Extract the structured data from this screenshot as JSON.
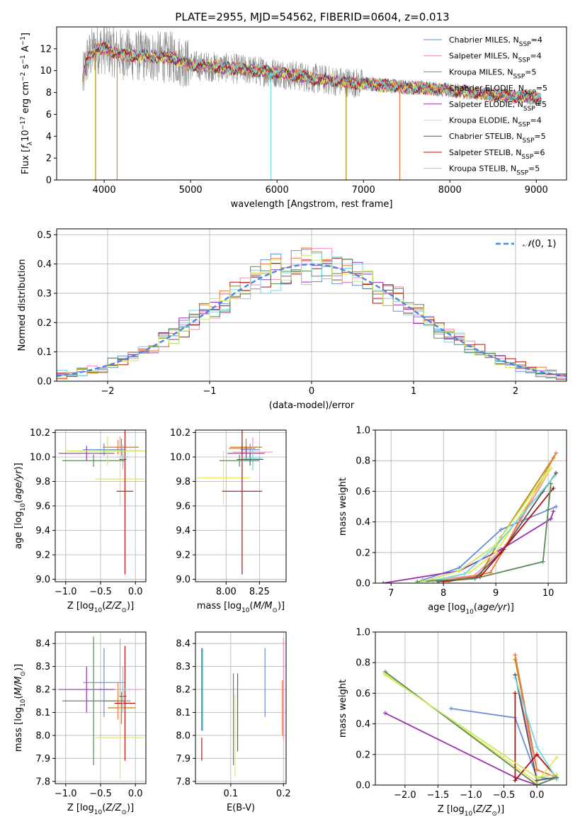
{
  "figure_title": "PLATE=2955, MJD=54562, FIBERID=0604, z=0.013",
  "colors": {
    "Chabrier MILES": "#6a8fd8",
    "Salpeter MILES": "#f08cc0",
    "Kroupa MILES": "#b8860b",
    "Chabrier ELODIE": "#f07a3a",
    "Salpeter ELODIE": "#9b30b0",
    "Kroupa ELODIE": "#e8e850",
    "Chabrier STELIB": "#555555",
    "Salpeter STELIB": "#b01010",
    "Kroupa STELIB": "#70d8e0",
    "extra_green": "#5a8a5a",
    "extra_lime": "#c8e860",
    "gaussian": "#4a86e8"
  },
  "chart_data": [
    {
      "panel": "spectrum",
      "type": "line",
      "xlabel": "wavelength [Angstrom, rest frame]",
      "ylabel": "Flux [f_λ 10^-17 erg cm^-2 s^-1 A^-1]",
      "xlim": [
        3450,
        9350
      ],
      "ylim": [
        0,
        14
      ],
      "xticks": [
        4000,
        5000,
        6000,
        7000,
        8000,
        9000
      ],
      "yticks": [
        0,
        2,
        4,
        6,
        8,
        10,
        12
      ],
      "continuum": [
        [
          3750,
          9.0
        ],
        [
          3800,
          11.0
        ],
        [
          3900,
          12.0
        ],
        [
          4000,
          12.0
        ],
        [
          4200,
          11.5
        ],
        [
          4500,
          11.3
        ],
        [
          4800,
          11.2
        ],
        [
          5000,
          10.5
        ],
        [
          5500,
          10.2
        ],
        [
          6000,
          9.8
        ],
        [
          6500,
          9.2
        ],
        [
          7000,
          8.8
        ],
        [
          7500,
          8.5
        ],
        [
          8000,
          8.2
        ],
        [
          8500,
          7.8
        ],
        [
          9000,
          7.5
        ],
        [
          9060,
          7.4
        ]
      ],
      "series": [
        {
          "name": "Chabrier MILES",
          "legend": "Chabrier MILES, N_SSP=4"
        },
        {
          "name": "Salpeter MILES",
          "legend": "Salpeter MILES, N_SSP=4"
        },
        {
          "name": "Kroupa MILES",
          "legend": "Kroupa MILES, N_SSP=5"
        },
        {
          "name": "Chabrier ELODIE",
          "legend": "Chabrier ELODIE, N_SSP=5"
        },
        {
          "name": "Salpeter ELODIE",
          "legend": "Salpeter ELODIE, N_SSP=5"
        },
        {
          "name": "Kroupa ELODIE",
          "legend": "Kroupa ELODIE, N_SSP=4"
        },
        {
          "name": "Chabrier STELIB",
          "legend": "Chabrier STELIB, N_SSP=5"
        },
        {
          "name": "Salpeter STELIB",
          "legend": "Salpeter STELIB, N_SSP=6"
        },
        {
          "name": "Kroupa STELIB",
          "legend": "Kroupa STELIB, N_SSP=5"
        }
      ]
    },
    {
      "panel": "residuals",
      "type": "line",
      "xlabel": "(data-model)/error",
      "ylabel": "Normed distribution",
      "xlim": [
        -2.5,
        2.5
      ],
      "ylim": [
        0,
        0.52
      ],
      "xticks": [
        -2,
        -1,
        0,
        1,
        2
      ],
      "yticks": [
        0.0,
        0.1,
        0.2,
        0.3,
        0.4,
        0.5
      ],
      "legend": "N(0,1)",
      "grid": true
    },
    {
      "panel": "age_vs_Z",
      "type": "scatter",
      "xlabel": "Z [log10(Z/Z_sun)]",
      "ylabel": "age [log10(age/yr)]",
      "xlim": [
        -1.15,
        0.15
      ],
      "ylim": [
        8.98,
        10.22
      ],
      "xticks": [
        -1.0,
        -0.5,
        0.0
      ],
      "yticks": [
        9.0,
        9.2,
        9.4,
        9.6,
        9.8,
        10.0,
        10.2
      ],
      "grid": true,
      "points": [
        {
          "x": -0.45,
          "y": 10.06,
          "xerr": 0.3,
          "yerr": 0.05,
          "c": "Chabrier MILES"
        },
        {
          "x": -0.22,
          "y": 10.05,
          "xerr": 0.3,
          "yerr": 0.12,
          "c": "Salpeter MILES"
        },
        {
          "x": -0.2,
          "y": 10.08,
          "xerr": 0.25,
          "yerr": 0.07,
          "c": "Kroupa MILES"
        },
        {
          "x": -0.25,
          "y": 10.08,
          "xerr": 0.22,
          "yerr": 0.06,
          "c": "Chabrier ELODIE"
        },
        {
          "x": -0.7,
          "y": 10.03,
          "xerr": 0.4,
          "yerr": 0.06,
          "c": "Salpeter ELODIE"
        },
        {
          "x": -0.22,
          "y": 9.82,
          "xerr": 0.35,
          "yerr": 0.22,
          "c": "Kroupa ELODIE"
        },
        {
          "x": -0.18,
          "y": 9.98,
          "xerr": 0.05,
          "yerr": 0.05,
          "c": "Chabrier STELIB"
        },
        {
          "x": -0.15,
          "y": 9.72,
          "xerr": 0.12,
          "yerr": 0.68,
          "c": "Salpeter STELIB"
        },
        {
          "x": -0.18,
          "y": 10.0,
          "xerr": 0.08,
          "yerr": 0.1,
          "c": "Kroupa STELIB"
        },
        {
          "x": -0.6,
          "y": 9.97,
          "xerr": 0.45,
          "yerr": 0.05,
          "c": "extra_green"
        },
        {
          "x": -0.4,
          "y": 10.05,
          "xerr": 0.6,
          "yerr": 0.12,
          "c": "extra_lime"
        }
      ]
    },
    {
      "panel": "age_vs_mass",
      "type": "scatter",
      "xlabel": "mass [log10(M/M_sun)]",
      "ylabel": "",
      "xlim": [
        7.77,
        8.45
      ],
      "ylim": [
        8.98,
        10.22
      ],
      "xticks": [
        8.0,
        8.25
      ],
      "yticks": [
        9.0,
        9.2,
        9.4,
        9.6,
        9.8,
        10.0,
        10.2
      ],
      "grid": true,
      "points": [
        {
          "x": 8.18,
          "y": 10.06,
          "xerr": 0.07,
          "yerr": 0.05,
          "c": "Chabrier MILES"
        },
        {
          "x": 8.2,
          "y": 10.04,
          "xerr": 0.15,
          "yerr": 0.12,
          "c": "Salpeter MILES"
        },
        {
          "x": 8.15,
          "y": 10.08,
          "xerr": 0.12,
          "yerr": 0.07,
          "c": "Kroupa MILES"
        },
        {
          "x": 8.12,
          "y": 10.07,
          "xerr": 0.1,
          "yerr": 0.06,
          "c": "Chabrier ELODIE"
        },
        {
          "x": 8.15,
          "y": 10.03,
          "xerr": 0.14,
          "yerr": 0.06,
          "c": "Salpeter ELODIE"
        },
        {
          "x": 7.98,
          "y": 9.83,
          "xerr": 0.2,
          "yerr": 0.22,
          "c": "Kroupa ELODIE"
        },
        {
          "x": 8.18,
          "y": 9.98,
          "xerr": 0.1,
          "yerr": 0.05,
          "c": "Chabrier STELIB"
        },
        {
          "x": 8.12,
          "y": 9.72,
          "xerr": 0.15,
          "yerr": 0.68,
          "c": "Salpeter STELIB"
        },
        {
          "x": 8.2,
          "y": 9.99,
          "xerr": 0.07,
          "yerr": 0.1,
          "c": "Kroupa STELIB"
        },
        {
          "x": 8.1,
          "y": 9.97,
          "xerr": 0.15,
          "yerr": 0.05,
          "c": "extra_green"
        }
      ]
    },
    {
      "panel": "mass_weight_vs_age",
      "type": "line",
      "xlabel": "age [log10(age/yr)]",
      "ylabel": "mass weight",
      "xlim": [
        6.7,
        10.35
      ],
      "ylim": [
        0,
        1.0
      ],
      "xticks": [
        7,
        8,
        9,
        10
      ],
      "yticks": [
        0.0,
        0.2,
        0.4,
        0.6,
        0.8,
        1.0
      ],
      "grid": true,
      "series": [
        {
          "c": "Chabrier MILES",
          "x": [
            7.6,
            8.3,
            9.1,
            10.15
          ],
          "y": [
            0.02,
            0.1,
            0.35,
            0.5
          ]
        },
        {
          "c": "Salpeter MILES",
          "x": [
            7.8,
            8.6,
            9.2,
            10.05
          ],
          "y": [
            0.02,
            0.05,
            0.25,
            0.75
          ]
        },
        {
          "c": "Kroupa MILES",
          "x": [
            7.9,
            8.7,
            9.1,
            10.1
          ],
          "y": [
            0.01,
            0.05,
            0.3,
            0.82
          ]
        },
        {
          "c": "Chabrier ELODIE",
          "x": [
            8.1,
            8.9,
            9.2,
            10.15
          ],
          "y": [
            0.01,
            0.07,
            0.25,
            0.85
          ]
        },
        {
          "c": "Salpeter ELODIE",
          "x": [
            6.85,
            8.3,
            9.1,
            10.05,
            10.1
          ],
          "y": [
            0.0,
            0.08,
            0.22,
            0.42,
            0.47
          ]
        },
        {
          "c": "Kroupa ELODIE",
          "x": [
            7.8,
            8.5,
            9.0,
            10.05
          ],
          "y": [
            0.01,
            0.07,
            0.2,
            0.75
          ]
        },
        {
          "c": "Chabrier STELIB",
          "x": [
            7.9,
            8.6,
            9.15,
            9.9,
            10.15
          ],
          "y": [
            0.01,
            0.03,
            0.22,
            0.6,
            0.72
          ]
        },
        {
          "c": "Salpeter STELIB",
          "x": [
            8.0,
            8.7,
            9.1,
            10.1
          ],
          "y": [
            0.01,
            0.04,
            0.2,
            0.62
          ]
        },
        {
          "c": "Kroupa STELIB",
          "x": [
            7.7,
            8.4,
            9.0,
            10.12
          ],
          "y": [
            0.01,
            0.06,
            0.24,
            0.7
          ]
        },
        {
          "c": "extra_green",
          "x": [
            7.5,
            8.6,
            9.9,
            10.0,
            10.05
          ],
          "y": [
            0.01,
            0.03,
            0.14,
            0.48,
            0.65
          ]
        },
        {
          "c": "extra_lime",
          "x": [
            7.6,
            8.3,
            9.0,
            10.0
          ],
          "y": [
            0.01,
            0.08,
            0.25,
            0.74
          ]
        }
      ]
    },
    {
      "panel": "mass_vs_Z",
      "type": "scatter",
      "xlabel": "Z [log10(Z/Z_sun)]",
      "ylabel": "mass [log10(M/M_sun)]",
      "xlim": [
        -1.15,
        0.15
      ],
      "ylim": [
        7.79,
        8.45
      ],
      "xticks": [
        -1.0,
        -0.5,
        0.0
      ],
      "yticks": [
        7.8,
        7.9,
        8.0,
        8.1,
        8.2,
        8.3,
        8.4
      ],
      "grid": true,
      "points": [
        {
          "x": -0.45,
          "y": 8.23,
          "xerr": 0.3,
          "yerr": 0.15,
          "c": "Chabrier MILES"
        },
        {
          "x": -0.22,
          "y": 8.2,
          "xerr": 0.3,
          "yerr": 0.22,
          "c": "Salpeter MILES"
        },
        {
          "x": -0.2,
          "y": 8.12,
          "xerr": 0.2,
          "yerr": 0.07,
          "c": "Kroupa MILES"
        },
        {
          "x": -0.25,
          "y": 8.15,
          "xerr": 0.18,
          "yerr": 0.08,
          "c": "Chabrier ELODIE"
        },
        {
          "x": -0.7,
          "y": 8.2,
          "xerr": 0.4,
          "yerr": 0.1,
          "c": "Salpeter ELODIE"
        },
        {
          "x": -0.22,
          "y": 7.99,
          "xerr": 0.35,
          "yerr": 0.18,
          "c": "Kroupa ELODIE"
        },
        {
          "x": -0.18,
          "y": 8.17,
          "xerr": 0.05,
          "yerr": 0.05,
          "c": "Chabrier STELIB"
        },
        {
          "x": -0.15,
          "y": 8.14,
          "xerr": 0.15,
          "yerr": 0.25,
          "c": "Salpeter STELIB"
        },
        {
          "x": -0.18,
          "y": 8.2,
          "xerr": 0.08,
          "yerr": 0.1,
          "c": "Kroupa STELIB"
        },
        {
          "x": -0.6,
          "y": 8.15,
          "xerr": 0.45,
          "yerr": 0.28,
          "c": "extra_green"
        }
      ]
    },
    {
      "panel": "mass_vs_EBV",
      "type": "scatter",
      "xlabel": "E(B-V)",
      "ylabel": "",
      "xlim": [
        0.033,
        0.205
      ],
      "ylim": [
        7.79,
        8.45
      ],
      "xticks": [
        0.1,
        0.2
      ],
      "yticks": [
        7.8,
        7.9,
        8.0,
        8.1,
        8.2,
        8.3,
        8.4
      ],
      "grid": true,
      "points": [
        {
          "x": 0.165,
          "y": 8.23,
          "yerr": 0.15,
          "c": "Chabrier MILES"
        },
        {
          "x": 0.2,
          "y": 8.2,
          "yerr": 0.22,
          "c": "Salpeter MILES"
        },
        {
          "x": 0.198,
          "y": 8.12,
          "yerr": 0.12,
          "c": "Chabrier ELODIE"
        },
        {
          "x": 0.113,
          "y": 8.1,
          "yerr": 0.17,
          "c": "Salpeter ELODIE"
        },
        {
          "x": 0.108,
          "y": 8.0,
          "yerr": 0.18,
          "c": "Kroupa ELODIE"
        },
        {
          "x": 0.045,
          "y": 8.2,
          "yerr": 0.18,
          "c": "Chabrier STELIB"
        },
        {
          "x": 0.045,
          "y": 7.94,
          "yerr": 0.05,
          "c": "Salpeter STELIB"
        },
        {
          "x": 0.047,
          "y": 8.2,
          "yerr": 0.18,
          "c": "Kroupa STELIB"
        },
        {
          "x": 0.105,
          "y": 8.07,
          "yerr": 0.2,
          "c": "extra_green"
        }
      ]
    },
    {
      "panel": "mass_weight_vs_Z",
      "type": "line",
      "xlabel": "Z [log10(Z/Z_sun)]",
      "ylabel": "mass weight",
      "xlim": [
        -2.45,
        0.45
      ],
      "ylim": [
        0,
        1.0
      ],
      "xticks": [
        -2.0,
        -1.5,
        -1.0,
        -0.5,
        0.0
      ],
      "yticks": [
        0.0,
        0.2,
        0.4,
        0.6,
        0.8,
        1.0
      ],
      "grid": true,
      "series": [
        {
          "c": "Chabrier MILES",
          "x": [
            -1.3,
            -0.33,
            0.0,
            0.3
          ],
          "y": [
            0.5,
            0.44,
            0.05,
            0.04
          ]
        },
        {
          "c": "Salpeter MILES",
          "x": [
            -0.33,
            0.0,
            0.3
          ],
          "y": [
            0.72,
            0.1,
            0.05
          ]
        },
        {
          "c": "Kroupa MILES",
          "x": [
            -0.33,
            0.0,
            0.3
          ],
          "y": [
            0.82,
            0.1,
            0.05
          ]
        },
        {
          "c": "Chabrier ELODIE",
          "x": [
            -0.33,
            0.0,
            0.3
          ],
          "y": [
            0.85,
            0.1,
            0.05
          ]
        },
        {
          "c": "Salpeter ELODIE",
          "x": [
            -2.3,
            -0.33,
            0.0,
            0.3
          ],
          "y": [
            0.47,
            0.05,
            0.0,
            0.05
          ]
        },
        {
          "c": "Kroupa ELODIE",
          "x": [
            -2.3,
            0.0,
            0.3
          ],
          "y": [
            0.73,
            0.02,
            0.18
          ]
        },
        {
          "c": "Chabrier STELIB",
          "x": [
            -0.33,
            0.0,
            0.3
          ],
          "y": [
            0.72,
            0.03,
            0.05
          ]
        },
        {
          "c": "Salpeter STELIB",
          "x": [
            -0.33,
            -0.33,
            0.0,
            0.3
          ],
          "y": [
            0.6,
            0.03,
            0.2,
            0.05
          ]
        },
        {
          "c": "Kroupa STELIB",
          "x": [
            -0.33,
            0.0,
            0.3
          ],
          "y": [
            0.7,
            0.25,
            0.04
          ]
        },
        {
          "c": "extra_green",
          "x": [
            -2.3,
            0.0,
            0.3
          ],
          "y": [
            0.74,
            0.0,
            0.05
          ]
        },
        {
          "c": "extra_lime",
          "x": [
            -2.3,
            0.0,
            0.3
          ],
          "y": [
            0.72,
            0.05,
            0.07
          ]
        }
      ]
    }
  ]
}
